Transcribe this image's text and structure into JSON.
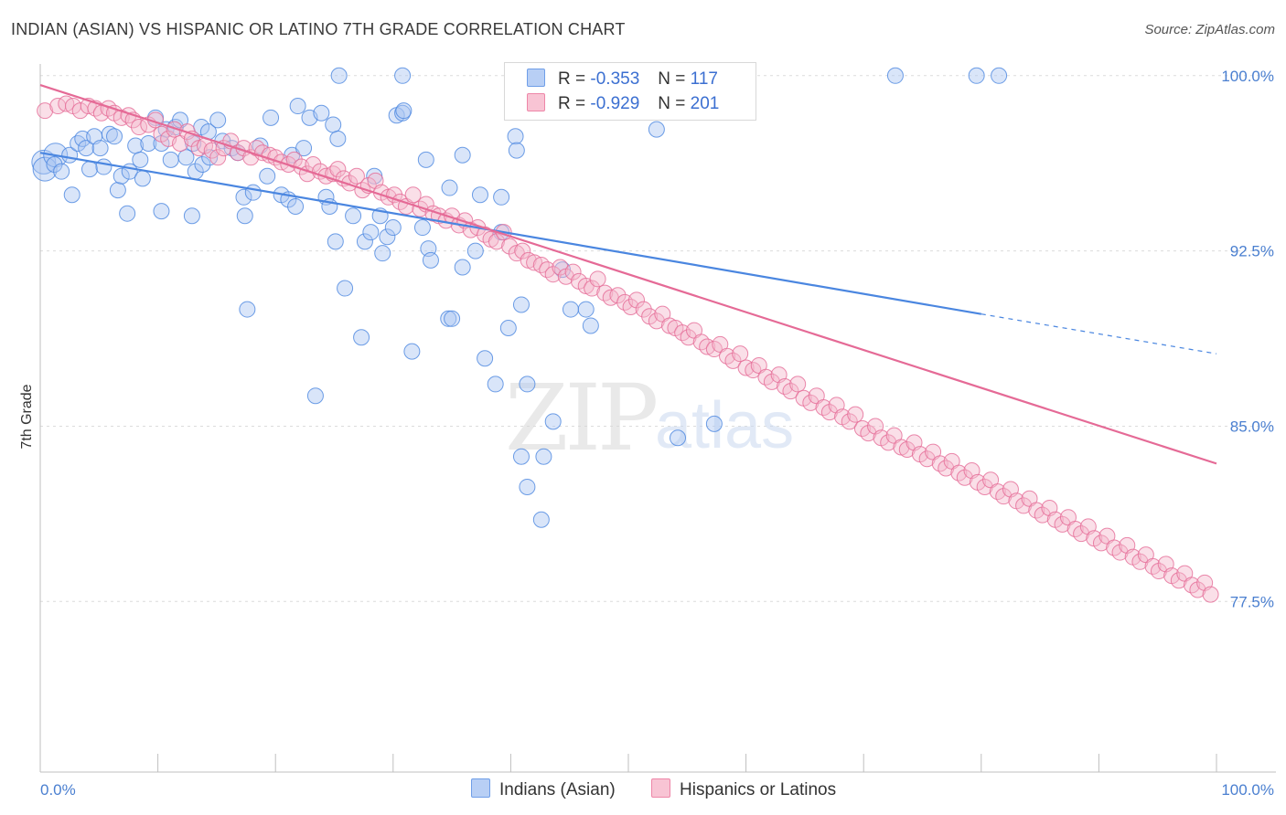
{
  "title": "INDIAN (ASIAN) VS HISPANIC OR LATINO 7TH GRADE CORRELATION CHART",
  "source": "Source: ZipAtlas.com",
  "watermark": {
    "zip": "ZIP",
    "atlas": "atlas"
  },
  "legend": {
    "r_label": "R =",
    "n_label": "N =",
    "rows": [
      {
        "r": "-0.353",
        "n": "117",
        "color": "#6f9ee8",
        "fill": "#b8cff5"
      },
      {
        "r": "-0.929",
        "n": "201",
        "color": "#ee86a8",
        "fill": "#f8c4d4"
      }
    ]
  },
  "bottom_legend": [
    "Indians (Asian)",
    "Hispanics or Latinos"
  ],
  "chart_data": {
    "type": "scatter",
    "title": "INDIAN (ASIAN) VS HISPANIC OR LATINO 7TH GRADE CORRELATION CHART",
    "xlabel": "",
    "ylabel": "7th Grade",
    "xlim": [
      0,
      100
    ],
    "ylim": [
      70.2,
      100.5
    ],
    "x_tick_labels": [
      "0.0%",
      "100.0%"
    ],
    "y_ticks": [
      77.5,
      85.0,
      92.5,
      100.0
    ],
    "y_tick_labels": [
      "77.5%",
      "85.0%",
      "92.5%",
      "100.0%"
    ],
    "grid": true,
    "legend_position": "top-center",
    "series": [
      {
        "name": "Indians (Asian)",
        "color": "#4a86e0",
        "fill": "#aac6f2",
        "trend": {
          "x0": 0,
          "y0": 96.7,
          "x1": 80,
          "y1": 89.8,
          "dash_x1": 100,
          "dash_y1": 88.1
        },
        "points": [
          [
            0.3,
            96.3
          ],
          [
            0.4,
            96.0
          ],
          [
            1.3,
            96.6
          ],
          [
            1.2,
            96.2
          ],
          [
            1.8,
            95.9
          ],
          [
            2.5,
            96.6
          ],
          [
            2.7,
            94.9
          ],
          [
            3.2,
            97.1
          ],
          [
            3.6,
            97.3
          ],
          [
            3.9,
            96.9
          ],
          [
            4.2,
            96.0
          ],
          [
            4.6,
            97.4
          ],
          [
            5.1,
            96.9
          ],
          [
            5.4,
            96.1
          ],
          [
            5.9,
            97.5
          ],
          [
            6.3,
            97.4
          ],
          [
            6.6,
            95.1
          ],
          [
            6.9,
            95.7
          ],
          [
            7.4,
            94.1
          ],
          [
            7.6,
            95.9
          ],
          [
            8.1,
            97.0
          ],
          [
            8.5,
            96.4
          ],
          [
            8.7,
            95.6
          ],
          [
            9.2,
            97.1
          ],
          [
            9.8,
            98.2
          ],
          [
            10.3,
            94.2
          ],
          [
            10.7,
            97.7
          ],
          [
            10.3,
            97.1
          ],
          [
            11.1,
            96.4
          ],
          [
            11.5,
            97.8
          ],
          [
            11.9,
            98.1
          ],
          [
            12.4,
            96.5
          ],
          [
            12.9,
            94.0
          ],
          [
            13.0,
            97.1
          ],
          [
            13.2,
            95.9
          ],
          [
            13.7,
            97.8
          ],
          [
            13.8,
            96.2
          ],
          [
            14.3,
            97.6
          ],
          [
            14.4,
            96.5
          ],
          [
            15.1,
            98.1
          ],
          [
            15.5,
            97.2
          ],
          [
            16.3,
            96.9
          ],
          [
            16.8,
            96.7
          ],
          [
            17.3,
            94.8
          ],
          [
            17.4,
            94.0
          ],
          [
            17.6,
            90.0
          ],
          [
            18.1,
            95.0
          ],
          [
            18.7,
            97.0
          ],
          [
            19.3,
            95.7
          ],
          [
            19.6,
            98.2
          ],
          [
            20.5,
            94.9
          ],
          [
            21.1,
            94.7
          ],
          [
            21.4,
            96.6
          ],
          [
            21.7,
            94.4
          ],
          [
            21.9,
            98.7
          ],
          [
            22.4,
            96.9
          ],
          [
            22.9,
            98.2
          ],
          [
            23.4,
            86.3
          ],
          [
            23.9,
            98.4
          ],
          [
            24.3,
            94.8
          ],
          [
            24.6,
            94.4
          ],
          [
            24.9,
            97.9
          ],
          [
            25.1,
            92.9
          ],
          [
            25.3,
            97.3
          ],
          [
            25.9,
            90.9
          ],
          [
            26.6,
            94.0
          ],
          [
            27.3,
            88.8
          ],
          [
            27.6,
            92.9
          ],
          [
            28.1,
            93.3
          ],
          [
            28.4,
            95.7
          ],
          [
            28.9,
            94.0
          ],
          [
            29.1,
            92.4
          ],
          [
            29.5,
            93.1
          ],
          [
            30.0,
            93.5
          ],
          [
            30.3,
            98.3
          ],
          [
            30.8,
            98.4
          ],
          [
            30.9,
            98.5
          ],
          [
            31.6,
            88.2
          ],
          [
            32.5,
            93.5
          ],
          [
            32.8,
            96.4
          ],
          [
            33.0,
            92.6
          ],
          [
            33.2,
            92.1
          ],
          [
            34.7,
            89.6
          ],
          [
            34.8,
            95.2
          ],
          [
            35.9,
            96.6
          ],
          [
            35.0,
            89.6
          ],
          [
            35.9,
            91.8
          ],
          [
            37.0,
            92.5
          ],
          [
            37.4,
            94.9
          ],
          [
            37.8,
            87.9
          ],
          [
            38.7,
            86.8
          ],
          [
            39.2,
            94.8
          ],
          [
            39.2,
            93.3
          ],
          [
            39.8,
            89.2
          ],
          [
            40.4,
            97.4
          ],
          [
            40.5,
            96.8
          ],
          [
            40.9,
            90.2
          ],
          [
            40.9,
            83.7
          ],
          [
            41.4,
            86.8
          ],
          [
            41.4,
            82.4
          ],
          [
            42.6,
            81.0
          ],
          [
            42.8,
            83.7
          ],
          [
            43.6,
            85.2
          ],
          [
            44.4,
            91.7
          ],
          [
            45.1,
            90.0
          ],
          [
            46.4,
            90.0
          ],
          [
            46.8,
            89.3
          ],
          [
            52.4,
            97.7
          ],
          [
            54.2,
            84.5
          ],
          [
            57.3,
            85.1
          ],
          [
            25.4,
            100.0
          ],
          [
            30.8,
            100.0
          ],
          [
            46.5,
            100.0
          ],
          [
            47.5,
            100.0
          ],
          [
            72.7,
            100.0
          ],
          [
            79.6,
            100.0
          ],
          [
            81.5,
            100.0
          ]
        ]
      },
      {
        "name": "Hispanics or Latinos",
        "color": "#e56a96",
        "fill": "#f5b8cc",
        "trend": {
          "x0": 0,
          "y0": 99.6,
          "x1": 100,
          "y1": 83.4
        },
        "points": [
          [
            0.4,
            98.5
          ],
          [
            1.5,
            98.7
          ],
          [
            2.2,
            98.8
          ],
          [
            2.8,
            98.7
          ],
          [
            3.4,
            98.5
          ],
          [
            4.1,
            98.7
          ],
          [
            4.7,
            98.6
          ],
          [
            5.2,
            98.4
          ],
          [
            5.8,
            98.6
          ],
          [
            6.3,
            98.4
          ],
          [
            6.9,
            98.2
          ],
          [
            7.5,
            98.3
          ],
          [
            7.9,
            98.1
          ],
          [
            8.4,
            97.8
          ],
          [
            9.2,
            97.9
          ],
          [
            9.8,
            98.1
          ],
          [
            10.3,
            97.5
          ],
          [
            10.9,
            97.3
          ],
          [
            11.4,
            97.7
          ],
          [
            11.9,
            97.1
          ],
          [
            12.5,
            97.6
          ],
          [
            12.9,
            97.3
          ],
          [
            13.5,
            96.9
          ],
          [
            14.0,
            97.0
          ],
          [
            14.6,
            96.8
          ],
          [
            15.1,
            96.5
          ],
          [
            15.6,
            96.9
          ],
          [
            16.2,
            97.2
          ],
          [
            16.8,
            96.7
          ],
          [
            17.3,
            96.9
          ],
          [
            17.9,
            96.5
          ],
          [
            18.4,
            96.9
          ],
          [
            18.9,
            96.7
          ],
          [
            19.5,
            96.6
          ],
          [
            20.0,
            96.5
          ],
          [
            20.5,
            96.3
          ],
          [
            21.1,
            96.2
          ],
          [
            21.6,
            96.4
          ],
          [
            22.2,
            96.1
          ],
          [
            22.7,
            95.8
          ],
          [
            23.2,
            96.2
          ],
          [
            23.8,
            95.9
          ],
          [
            24.3,
            95.7
          ],
          [
            24.9,
            95.8
          ],
          [
            25.3,
            96.0
          ],
          [
            25.8,
            95.6
          ],
          [
            26.3,
            95.4
          ],
          [
            26.9,
            95.7
          ],
          [
            27.4,
            95.1
          ],
          [
            27.9,
            95.3
          ],
          [
            28.5,
            95.5
          ],
          [
            29.0,
            95.0
          ],
          [
            29.6,
            94.8
          ],
          [
            30.1,
            94.9
          ],
          [
            30.6,
            94.6
          ],
          [
            31.1,
            94.4
          ],
          [
            31.7,
            94.9
          ],
          [
            32.3,
            94.3
          ],
          [
            32.8,
            94.5
          ],
          [
            33.4,
            94.1
          ],
          [
            33.9,
            94.0
          ],
          [
            34.5,
            93.8
          ],
          [
            35.0,
            94.0
          ],
          [
            35.6,
            93.6
          ],
          [
            36.1,
            93.8
          ],
          [
            36.6,
            93.4
          ],
          [
            37.2,
            93.5
          ],
          [
            37.8,
            93.2
          ],
          [
            38.3,
            93.0
          ],
          [
            38.8,
            92.9
          ],
          [
            39.4,
            93.3
          ],
          [
            39.9,
            92.7
          ],
          [
            40.5,
            92.4
          ],
          [
            41.0,
            92.5
          ],
          [
            41.5,
            92.1
          ],
          [
            42.0,
            92.0
          ],
          [
            42.6,
            91.9
          ],
          [
            43.1,
            91.7
          ],
          [
            43.6,
            91.5
          ],
          [
            44.2,
            91.8
          ],
          [
            44.7,
            91.4
          ],
          [
            45.3,
            91.6
          ],
          [
            45.8,
            91.2
          ],
          [
            46.4,
            91.0
          ],
          [
            46.9,
            90.9
          ],
          [
            47.4,
            91.3
          ],
          [
            48.0,
            90.7
          ],
          [
            48.5,
            90.5
          ],
          [
            49.1,
            90.6
          ],
          [
            49.7,
            90.3
          ],
          [
            50.2,
            90.1
          ],
          [
            50.7,
            90.4
          ],
          [
            51.3,
            90.0
          ],
          [
            51.8,
            89.7
          ],
          [
            52.4,
            89.5
          ],
          [
            52.9,
            89.8
          ],
          [
            53.5,
            89.3
          ],
          [
            54.0,
            89.2
          ],
          [
            54.6,
            89.0
          ],
          [
            55.1,
            88.8
          ],
          [
            55.6,
            89.1
          ],
          [
            56.2,
            88.6
          ],
          [
            56.7,
            88.4
          ],
          [
            57.3,
            88.3
          ],
          [
            57.8,
            88.5
          ],
          [
            58.4,
            88.0
          ],
          [
            58.9,
            87.8
          ],
          [
            59.5,
            88.1
          ],
          [
            60.0,
            87.5
          ],
          [
            60.6,
            87.4
          ],
          [
            61.1,
            87.6
          ],
          [
            61.7,
            87.1
          ],
          [
            62.2,
            86.9
          ],
          [
            62.8,
            87.2
          ],
          [
            63.3,
            86.7
          ],
          [
            63.8,
            86.5
          ],
          [
            64.4,
            86.8
          ],
          [
            64.9,
            86.2
          ],
          [
            65.5,
            86.0
          ],
          [
            66.0,
            86.3
          ],
          [
            66.6,
            85.8
          ],
          [
            67.1,
            85.6
          ],
          [
            67.7,
            85.9
          ],
          [
            68.2,
            85.4
          ],
          [
            68.8,
            85.2
          ],
          [
            69.3,
            85.5
          ],
          [
            69.9,
            84.9
          ],
          [
            70.4,
            84.7
          ],
          [
            71.0,
            85.0
          ],
          [
            71.5,
            84.5
          ],
          [
            72.1,
            84.3
          ],
          [
            72.6,
            84.6
          ],
          [
            73.2,
            84.1
          ],
          [
            73.7,
            84.0
          ],
          [
            74.3,
            84.3
          ],
          [
            74.8,
            83.8
          ],
          [
            75.4,
            83.6
          ],
          [
            75.9,
            83.9
          ],
          [
            76.5,
            83.4
          ],
          [
            77.0,
            83.2
          ],
          [
            77.5,
            83.5
          ],
          [
            78.1,
            83.0
          ],
          [
            78.6,
            82.8
          ],
          [
            79.2,
            83.1
          ],
          [
            79.7,
            82.6
          ],
          [
            80.3,
            82.4
          ],
          [
            80.8,
            82.7
          ],
          [
            81.4,
            82.2
          ],
          [
            81.9,
            82.0
          ],
          [
            82.5,
            82.3
          ],
          [
            83.0,
            81.8
          ],
          [
            83.6,
            81.6
          ],
          [
            84.1,
            81.9
          ],
          [
            84.7,
            81.4
          ],
          [
            85.2,
            81.2
          ],
          [
            85.8,
            81.5
          ],
          [
            86.3,
            81.0
          ],
          [
            86.9,
            80.8
          ],
          [
            87.4,
            81.1
          ],
          [
            88.0,
            80.6
          ],
          [
            88.5,
            80.4
          ],
          [
            89.1,
            80.7
          ],
          [
            89.6,
            80.2
          ],
          [
            90.2,
            80.0
          ],
          [
            90.7,
            80.3
          ],
          [
            91.3,
            79.8
          ],
          [
            91.8,
            79.6
          ],
          [
            92.4,
            79.9
          ],
          [
            92.9,
            79.4
          ],
          [
            93.5,
            79.2
          ],
          [
            94.0,
            79.5
          ],
          [
            94.6,
            79.0
          ],
          [
            95.1,
            78.8
          ],
          [
            95.7,
            79.1
          ],
          [
            96.2,
            78.6
          ],
          [
            96.8,
            78.4
          ],
          [
            97.3,
            78.7
          ],
          [
            97.9,
            78.2
          ],
          [
            98.4,
            78.0
          ],
          [
            99.0,
            78.3
          ],
          [
            99.5,
            77.8
          ]
        ]
      }
    ]
  }
}
